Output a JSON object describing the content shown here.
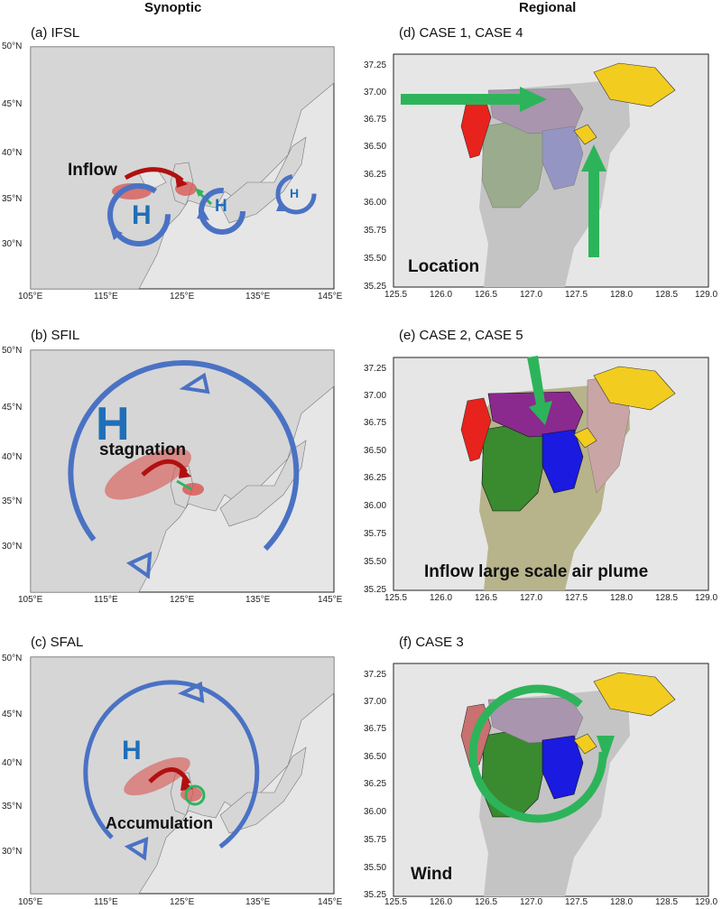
{
  "columns": {
    "left": "Synoptic",
    "right": "Regional"
  },
  "synoptic_axes": {
    "lat_ticks": [
      "50°N",
      "45°N",
      "40°N",
      "35°N",
      "30°N"
    ],
    "lon_ticks": [
      "105°E",
      "115°E",
      "125°E",
      "135°E",
      "145°E"
    ]
  },
  "regional_axes": {
    "y_ticks": [
      "37.25",
      "37.00",
      "36.75",
      "36.50",
      "36.25",
      "36.00",
      "35.75",
      "35.50",
      "35.25"
    ],
    "x_ticks": [
      "125.5",
      "126.0",
      "126.5",
      "127.0",
      "127.5",
      "128.0",
      "128.5",
      "129.0"
    ]
  },
  "panels": {
    "a": {
      "label": "(a) IFSL",
      "inflow": "Inflow",
      "H": "H"
    },
    "b": {
      "label": "(b) SFIL",
      "stagnation": "stagnation",
      "H": "H"
    },
    "c": {
      "label": "(c) SFAL",
      "accumulation": "Accumulation",
      "H": "H"
    },
    "d": {
      "label": "(d) CASE 1, CASE 4",
      "caption": "Location"
    },
    "e": {
      "label": "(e) CASE 2, CASE 5",
      "caption": "Inflow large scale air plume"
    },
    "f": {
      "label": "(f) CASE 3",
      "caption": "Wind"
    }
  },
  "colors": {
    "map_bg": "#e6e6e6",
    "land": "#d4d4d4",
    "high_pressure": "#4a72c4",
    "transport_arrow": "#b01010",
    "plume": "#d9534f",
    "green_arrow": "#2db45a",
    "yellow_region": "#f2cc1f",
    "red_region": "#e8221c",
    "purple_region": "#8a2a8f",
    "green_region": "#3a8a2f",
    "blue_region": "#1a1ae0",
    "tan_region": "#b7b38a",
    "pink_region": "#c9a5a5"
  }
}
